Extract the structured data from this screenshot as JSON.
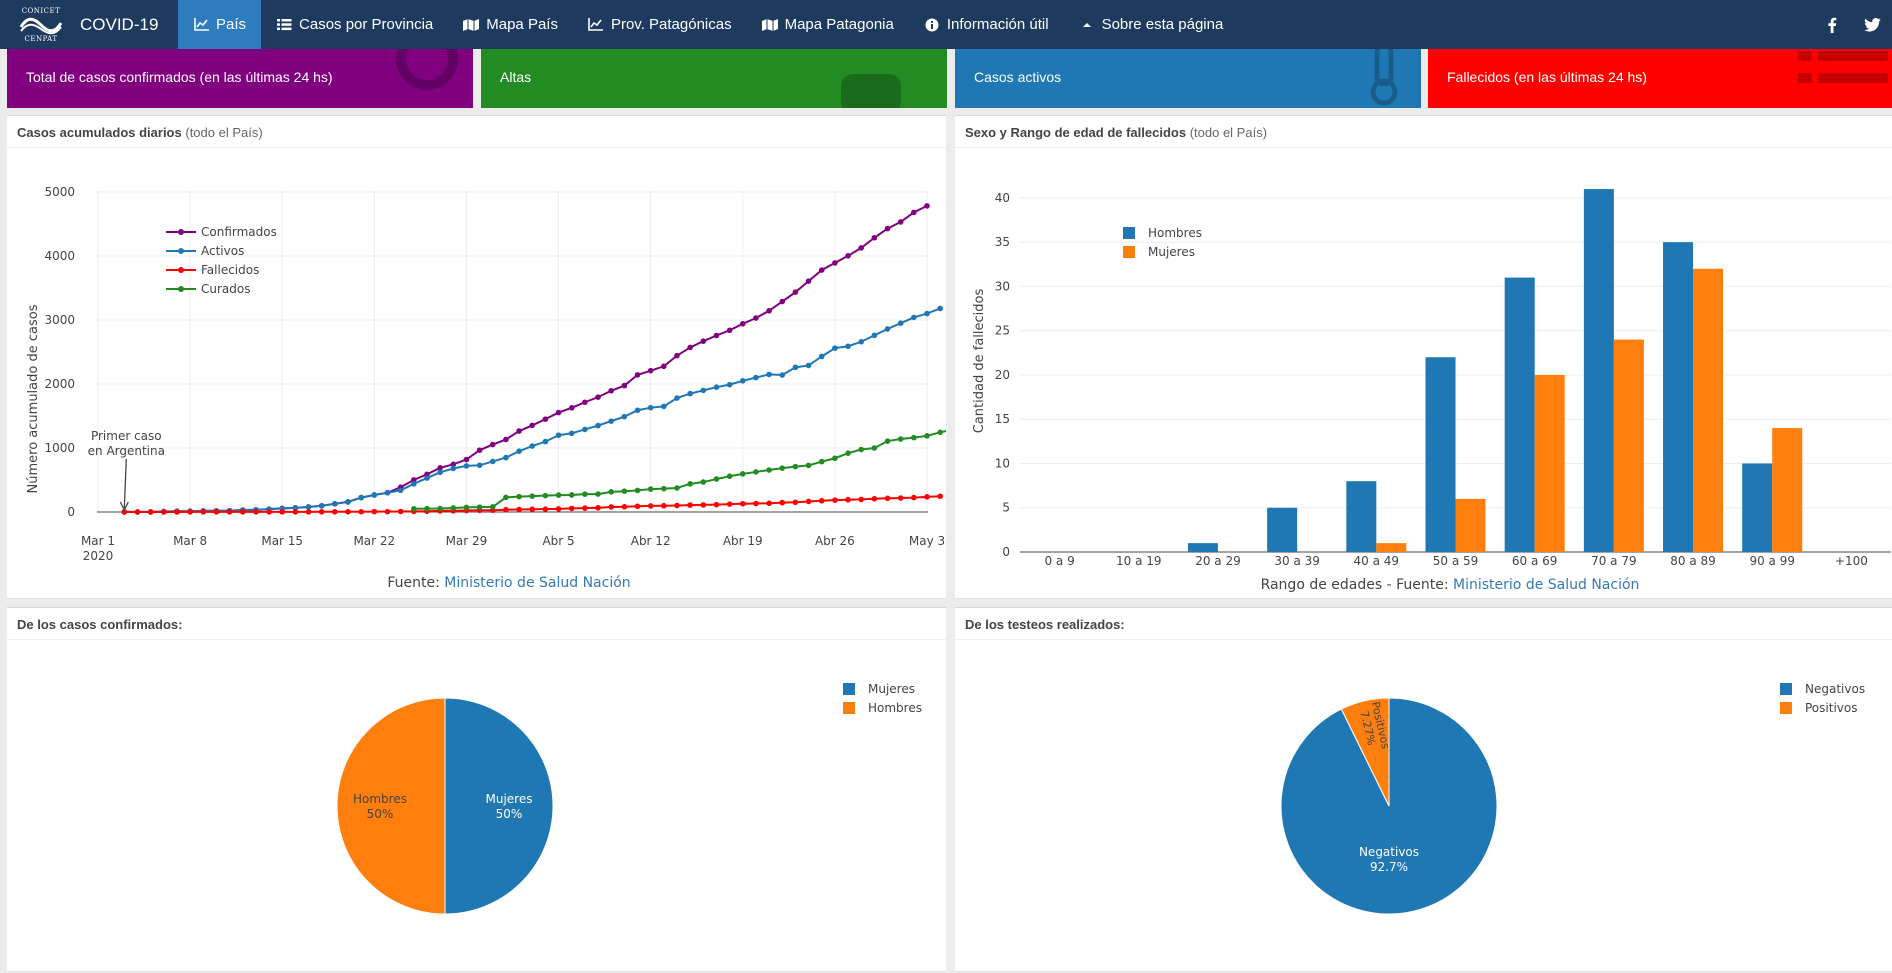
{
  "nav": {
    "logo_top": "CONICET",
    "logo_bottom": "CENPAT",
    "brand": "COVID-19",
    "items": [
      {
        "label": "País",
        "icon": "line-chart-icon",
        "active": true
      },
      {
        "label": "Casos por Provincia",
        "icon": "list-icon",
        "active": false
      },
      {
        "label": "Mapa País",
        "icon": "map-icon",
        "active": false
      },
      {
        "label": "Prov. Patagónicas",
        "icon": "line-chart-icon",
        "active": false
      },
      {
        "label": "Mapa Patagonia",
        "icon": "map-icon",
        "active": false
      },
      {
        "label": "Información útil",
        "icon": "info-circle-icon",
        "active": false
      },
      {
        "label": "Sobre esta página",
        "icon": "caret-up-icon",
        "active": false
      }
    ]
  },
  "stats": [
    {
      "label": "Total de casos confirmados (en las últimas 24 hs)",
      "color": "#800080"
    },
    {
      "label": "Altas",
      "color": "#228b22"
    },
    {
      "label": "Casos activos",
      "color": "#1f77b4"
    },
    {
      "label": "Fallecidos (en las últimas 24 hs)",
      "color": "#ff0000"
    }
  ],
  "panels": {
    "cumulative": {
      "title": "Casos acumulados diarios",
      "subtitle": "(todo el País)"
    },
    "deaths": {
      "title": "Sexo y Rango de edad de fallecidos",
      "subtitle": "(todo el País)"
    },
    "confirmed": {
      "title": "De los casos confirmados:",
      "subtitle": ""
    },
    "tests": {
      "title": "De los testeos realizados:",
      "subtitle": ""
    }
  },
  "chart_data": [
    {
      "type": "line",
      "ylabel": "Número acumulado de casos",
      "ylim": [
        0,
        5000
      ],
      "yticks": [
        0,
        1000,
        2000,
        3000,
        4000,
        5000
      ],
      "xticks": [
        {
          "day": 0,
          "label": "Mar 1",
          "label2": "2020"
        },
        {
          "day": 7,
          "label": "Mar 8"
        },
        {
          "day": 14,
          "label": "Mar 15"
        },
        {
          "day": 21,
          "label": "Mar 22"
        },
        {
          "day": 28,
          "label": "Mar 29"
        },
        {
          "day": 35,
          "label": "Abr 5"
        },
        {
          "day": 42,
          "label": "Abr 12"
        },
        {
          "day": 49,
          "label": "Abr 19"
        },
        {
          "day": 56,
          "label": "Abr 26"
        },
        {
          "day": 63,
          "label": "May 3"
        }
      ],
      "source_prefix": "Fuente: ",
      "source_link": "Ministerio de Salud Nación",
      "annotation": {
        "line1": "Primer caso",
        "line2": "en Argentina"
      },
      "grid": true,
      "legend_position": "top-left",
      "series": [
        {
          "name": "Confirmados",
          "color": "#800080",
          "start": 2,
          "values": [
            1,
            1,
            2,
            8,
            12,
            12,
            17,
            19,
            21,
            31,
            34,
            45,
            56,
            65,
            79,
            97,
            128,
            158,
            225,
            266,
            301,
            387,
            502,
            589,
            690,
            745,
            820,
            966,
            1054,
            1133,
            1265,
            1353,
            1451,
            1554,
            1628,
            1715,
            1795,
            1894,
            1975,
            2142,
            2208,
            2277,
            2443,
            2571,
            2669,
            2758,
            2839,
            2941,
            3031,
            3144,
            3288,
            3435,
            3607,
            3780,
            3892,
            4003,
            4127,
            4285,
            4428,
            4532,
            4681,
            4783
          ]
        },
        {
          "name": "Activos",
          "color": "#1f77b4",
          "start": 2,
          "values": [
            1,
            1,
            2,
            8,
            12,
            12,
            17,
            19,
            21,
            31,
            34,
            45,
            56,
            65,
            79,
            97,
            128,
            158,
            225,
            266,
            301,
            340,
            440,
            530,
            620,
            680,
            720,
            730,
            790,
            850,
            950,
            1030,
            1100,
            1200,
            1230,
            1290,
            1350,
            1420,
            1490,
            1590,
            1630,
            1650,
            1780,
            1850,
            1900,
            1950,
            1990,
            2050,
            2100,
            2150,
            2140,
            2260,
            2290,
            2430,
            2560,
            2590,
            2660,
            2760,
            2860,
            2950,
            3040,
            3100,
            3180
          ]
        },
        {
          "name": "Fallecidos",
          "color": "#ff0000",
          "start": 2,
          "values": [
            0,
            0,
            0,
            0,
            0,
            1,
            2,
            2,
            2,
            2,
            2,
            2,
            2,
            2,
            2,
            3,
            3,
            4,
            4,
            6,
            6,
            8,
            9,
            12,
            17,
            19,
            23,
            27,
            28,
            36,
            39,
            43,
            44,
            48,
            56,
            60,
            66,
            79,
            82,
            89,
            95,
            98,
            101,
            108,
            111,
            115,
            123,
            129,
            132,
            136,
            147,
            152,
            165,
            176,
            185,
            192,
            197,
            207,
            214,
            218,
            225,
            237,
            246
          ]
        },
        {
          "name": "Curados",
          "color": "#228b22",
          "start": 24,
          "values": [
            50,
            52,
            54,
            63,
            72,
            76,
            80,
            228,
            240,
            248,
            256,
            264,
            266,
            279,
            280,
            315,
            325,
            338,
            358,
            365,
            375,
            440,
            468,
            515,
            559,
            596,
            626,
            656,
            685,
            709,
            728,
            787,
            840,
            919,
            976,
            1000,
            1107,
            1140,
            1162,
            1190,
            1245,
            1288,
            1300,
            1354
          ]
        }
      ]
    },
    {
      "type": "bar",
      "ylabel": "Cantidad de fallecidos",
      "xlabel_prefix": "Rango de edades - Fuente: ",
      "xlabel_link": "Ministerio de Salud Nación",
      "categories": [
        "0 a 9",
        "10 a 19",
        "20 a 29",
        "30 a 39",
        "40 a 49",
        "50 a 59",
        "60 a 69",
        "70 a 79",
        "80 a 89",
        "90 a 99",
        "+100"
      ],
      "ylim": [
        0,
        43
      ],
      "yticks": [
        0,
        5,
        10,
        15,
        20,
        25,
        30,
        35,
        40
      ],
      "legend_position": "top-left",
      "series": [
        {
          "name": "Hombres",
          "color": "#1f77b4",
          "values": [
            0,
            0,
            1,
            5,
            8,
            22,
            31,
            41,
            35,
            10,
            0
          ]
        },
        {
          "name": "Mujeres",
          "color": "#ff7f0e",
          "values": [
            0,
            0,
            0,
            0,
            1,
            6,
            20,
            24,
            32,
            14,
            0
          ]
        }
      ]
    },
    {
      "type": "pie",
      "legend_position": "top-right",
      "slices": [
        {
          "name": "Mujeres",
          "pct": 50,
          "label": "50%",
          "color": "#1f77b4"
        },
        {
          "name": "Hombres",
          "pct": 50,
          "label": "50%",
          "color": "#ff7f0e"
        }
      ]
    },
    {
      "type": "pie",
      "legend_position": "top-right",
      "slices": [
        {
          "name": "Negativos",
          "pct": 92.73,
          "label": "92.7%",
          "color": "#1f77b4"
        },
        {
          "name": "Positivos",
          "pct": 7.27,
          "label": "7.27%",
          "color": "#ff7f0e"
        }
      ]
    }
  ]
}
